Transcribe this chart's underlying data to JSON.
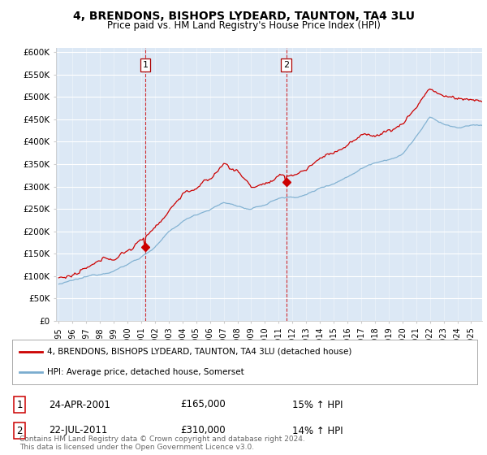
{
  "title": "4, BRENDONS, BISHOPS LYDEARD, TAUNTON, TA4 3LU",
  "subtitle": "Price paid vs. HM Land Registry's House Price Index (HPI)",
  "ylabel_ticks": [
    "£0",
    "£50K",
    "£100K",
    "£150K",
    "£200K",
    "£250K",
    "£300K",
    "£350K",
    "£400K",
    "£450K",
    "£500K",
    "£550K",
    "£600K"
  ],
  "ytick_values": [
    0,
    50000,
    100000,
    150000,
    200000,
    250000,
    300000,
    350000,
    400000,
    450000,
    500000,
    550000,
    600000
  ],
  "legend_line1": "4, BRENDONS, BISHOPS LYDEARD, TAUNTON, TA4 3LU (detached house)",
  "legend_line2": "HPI: Average price, detached house, Somerset",
  "annotation1": {
    "num": "1",
    "date": "24-APR-2001",
    "price": "£165,000",
    "pct": "15% ↑ HPI"
  },
  "annotation2": {
    "num": "2",
    "date": "22-JUL-2011",
    "price": "£310,000",
    "pct": "14% ↑ HPI"
  },
  "footer": "Contains HM Land Registry data © Crown copyright and database right 2024.\nThis data is licensed under the Open Government Licence v3.0.",
  "bg_color": "#ffffff",
  "plot_bg_color": "#dce8f5",
  "grid_color": "#ffffff",
  "red_color": "#cc0000",
  "blue_color": "#7aadcf",
  "marker_color": "#cc0000"
}
